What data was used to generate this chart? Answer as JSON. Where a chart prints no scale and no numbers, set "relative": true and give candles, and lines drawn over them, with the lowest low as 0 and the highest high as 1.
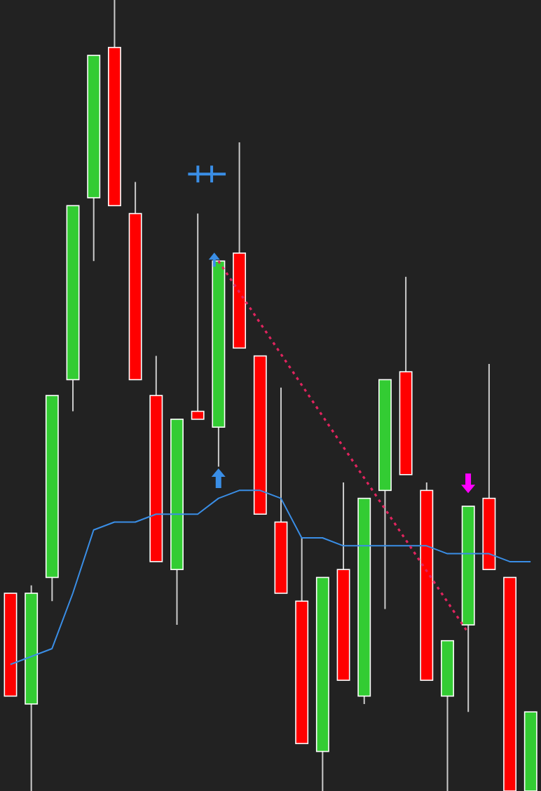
{
  "chart_data": {
    "type": "candlestick",
    "relative": true,
    "categories": [
      null,
      null,
      null,
      null,
      null,
      null,
      null,
      null,
      null,
      null,
      null,
      null,
      null,
      null,
      null,
      null,
      null,
      null,
      null,
      null,
      null,
      null,
      null,
      null,
      null,
      null
    ],
    "ohlc": [
      [
        0.25,
        0.25,
        0.12,
        0.12
      ],
      [
        0.11,
        0.26,
        0,
        0.25
      ],
      [
        0.27,
        0.5,
        0.24,
        0.5
      ],
      [
        0.52,
        0.74,
        0.48,
        0.74
      ],
      [
        0.75,
        0.93,
        0.67,
        0.93
      ],
      [
        0.94,
        1,
        0.74,
        0.74
      ],
      [
        0.73,
        0.77,
        0.52,
        0.52
      ],
      [
        0.5,
        0.55,
        0.29,
        0.29
      ],
      [
        0.28,
        0.47,
        0.21,
        0.47
      ],
      [
        0.48,
        0.73,
        0.47,
        0.47
      ],
      [
        0.46,
        0.67,
        0.41,
        0.67
      ],
      [
        0.68,
        0.82,
        0.56,
        0.56
      ],
      [
        0.55,
        0.55,
        0.35,
        0.35
      ],
      [
        0.34,
        0.51,
        0.25,
        0.25
      ],
      [
        0.24,
        0.32,
        0.06,
        0.06
      ],
      [
        0.05,
        0.27,
        0,
        0.27
      ],
      [
        0.28,
        0.39,
        0.14,
        0.14
      ],
      [
        0.12,
        0.37,
        0.11,
        0.37
      ],
      [
        0.38,
        0.52,
        0.23,
        0.52
      ],
      [
        0.53,
        0.65,
        0.4,
        0.4
      ],
      [
        0.38,
        0.39,
        0.14,
        0.14
      ],
      [
        0.12,
        0.19,
        0,
        0.19
      ],
      [
        0.21,
        0.36,
        0.1,
        0.36
      ],
      [
        0.37,
        0.54,
        0.28,
        0.28
      ],
      [
        0.27,
        0.27,
        0,
        0
      ],
      [
        0,
        0.1,
        0,
        0.1
      ]
    ],
    "colors": [
      "#ff0000",
      "#33cc33",
      "#33cc33",
      "#33cc33",
      "#33cc33",
      "#ff0000",
      "#ff0000",
      "#ff0000",
      "#33cc33",
      "#ff0000",
      "#33cc33",
      "#ff0000",
      "#ff0000",
      "#ff0000",
      "#ff0000",
      "#33cc33",
      "#ff0000",
      "#33cc33",
      "#33cc33",
      "#ff0000",
      "#ff0000",
      "#33cc33",
      "#33cc33",
      "#ff0000",
      "#ff0000",
      "#33cc33"
    ],
    "series": [
      {
        "type": "line",
        "color": "#3a8ee6",
        "values": [
          0.16,
          0.17,
          0.18,
          0.25,
          0.33,
          0.34,
          0.34,
          0.35,
          0.35,
          0.35,
          0.37,
          0.38,
          0.38,
          0.37,
          0.32,
          0.32,
          0.31,
          0.31,
          0.31,
          0.31,
          0.31,
          0.3,
          0.3,
          0.3,
          0.29,
          0.29
        ]
      },
      {
        "type": "line",
        "color": "#e0245e",
        "line_style": "dotted",
        "values": [
          null,
          null,
          null,
          null,
          null,
          null,
          null,
          null,
          null,
          null,
          0.67,
          null,
          null,
          null,
          null,
          null,
          null,
          null,
          null,
          null,
          null,
          null,
          0.2,
          null,
          null,
          null
        ]
      }
    ],
    "marker": "none"
  }
}
